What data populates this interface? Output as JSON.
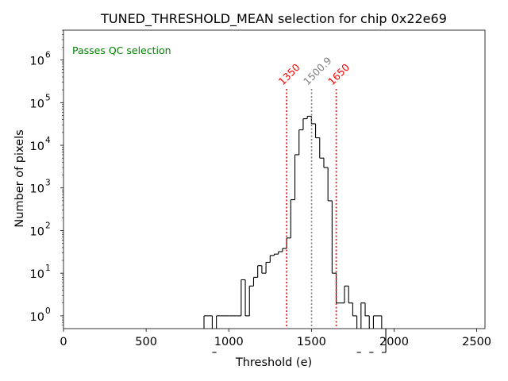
{
  "chart_data": {
    "type": "histogram",
    "title": "TUNED_THRESHOLD_MEAN selection for chip 0x22e69",
    "xlabel": "Threshold (e)",
    "ylabel": "Number of pixels",
    "xlim": [
      0,
      2550
    ],
    "ylim_log10": [
      -0.3,
      6.7
    ],
    "x_ticks": [
      0,
      500,
      1000,
      1500,
      2000,
      2500
    ],
    "x_tick_labels": [
      "0",
      "500",
      "1000",
      "1500",
      "2000",
      "2500"
    ],
    "y_ticks_log10": [
      0,
      1,
      2,
      3,
      4,
      5,
      6
    ],
    "y_tick_labels": [
      "10",
      "10",
      "10",
      "10",
      "10",
      "10",
      "10"
    ],
    "y_tick_exponents": [
      "0",
      "1",
      "2",
      "3",
      "4",
      "5",
      "6"
    ],
    "y_scale": "log",
    "annotation": "Passes QC selection",
    "annotation_color": "#008000",
    "bin_width": 25,
    "bins_start": [
      850,
      875,
      900,
      925,
      950,
      975,
      1000,
      1025,
      1050,
      1075,
      1100,
      1125,
      1150,
      1175,
      1200,
      1225,
      1250,
      1275,
      1300,
      1325,
      1350,
      1375,
      1400,
      1425,
      1450,
      1475,
      1500,
      1525,
      1550,
      1575,
      1600,
      1625,
      1650,
      1675,
      1700,
      1725,
      1750,
      1775,
      1800,
      1825,
      1850,
      1875,
      1900,
      1925
    ],
    "bins_count": [
      1,
      1,
      0,
      1,
      1,
      1,
      1,
      1,
      1,
      7,
      1,
      5,
      8,
      15,
      10,
      18,
      26,
      28,
      32,
      38,
      67,
      530,
      6000,
      23000,
      42000,
      48000,
      32000,
      15000,
      5000,
      3000,
      500,
      10,
      2,
      2,
      5,
      2,
      1,
      0,
      2,
      1,
      0,
      1,
      1,
      0
    ],
    "vertical_lines": [
      {
        "x": 1350,
        "label": "1350",
        "color": "#ff0000",
        "style": "dotted"
      },
      {
        "x": 1500.9,
        "label": "1500.9",
        "color": "#808080",
        "style": "dotted"
      },
      {
        "x": 1650,
        "label": "1650",
        "color": "#ff0000",
        "style": "dotted"
      }
    ],
    "line_color": "#000000"
  }
}
